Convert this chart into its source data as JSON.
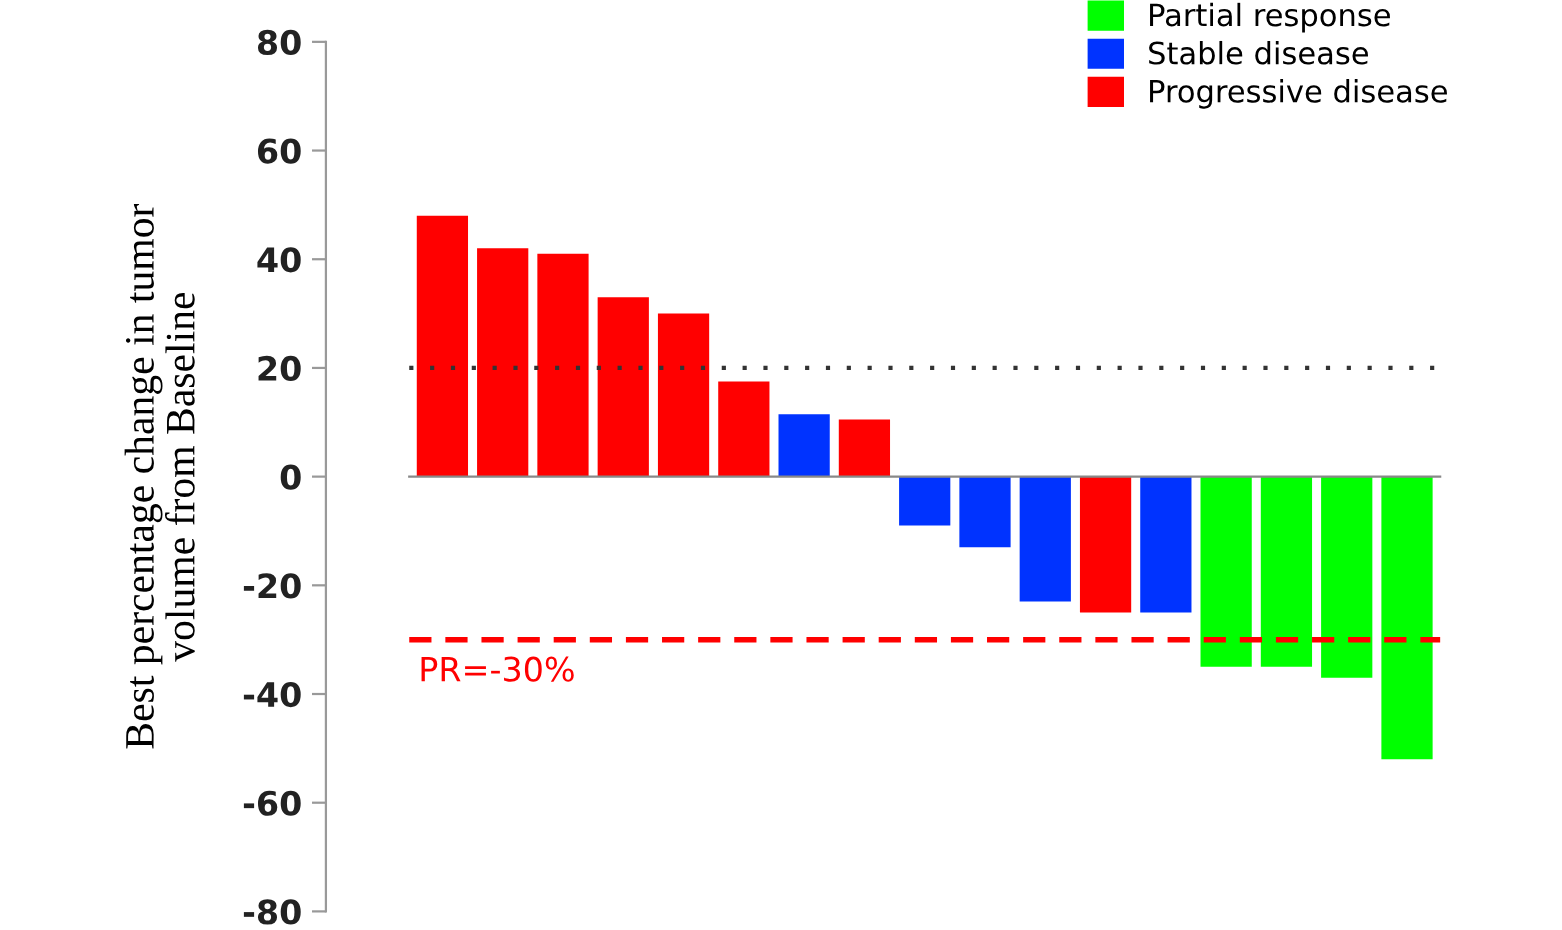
{
  "chart_data": {
    "type": "bar",
    "ylabel": "Best percentage change in tumor\nvolume from Baseline",
    "categories": [
      null,
      null,
      null,
      null,
      null,
      null,
      null,
      null,
      null,
      null,
      null,
      null,
      null,
      null,
      null,
      null,
      null
    ],
    "series": [
      {
        "name": "Partial response",
        "color": "#00ff00",
        "values": [
          null,
          null,
          null,
          null,
          null,
          null,
          null,
          null,
          null,
          null,
          null,
          null,
          null,
          -35,
          -35,
          -37,
          -52
        ]
      },
      {
        "name": "Stable disease",
        "color": "#0033ff",
        "values": [
          null,
          null,
          null,
          null,
          null,
          null,
          11.5,
          null,
          -9,
          -13,
          -23,
          null,
          -25,
          null,
          null,
          null,
          null
        ]
      },
      {
        "name": "Progressive disease",
        "color": "#ff0000",
        "values": [
          48,
          42,
          41,
          33,
          30,
          17.5,
          null,
          10.5,
          null,
          null,
          null,
          -25,
          null,
          null,
          null,
          null,
          null
        ]
      }
    ],
    "ylim": [
      -80,
      80
    ],
    "yticks": [
      -80,
      -60,
      -40,
      -20,
      0,
      20,
      40,
      60,
      80
    ],
    "ref_lines": [
      {
        "axis": "y",
        "value": 20,
        "line_style": "dotted",
        "color": "#333333"
      },
      {
        "axis": "y",
        "value": -30,
        "label": "PR=-30%",
        "line_style": "dashed",
        "color": "#ff0000"
      }
    ],
    "tick_labels": "y",
    "legend": "top right",
    "grid": false
  }
}
